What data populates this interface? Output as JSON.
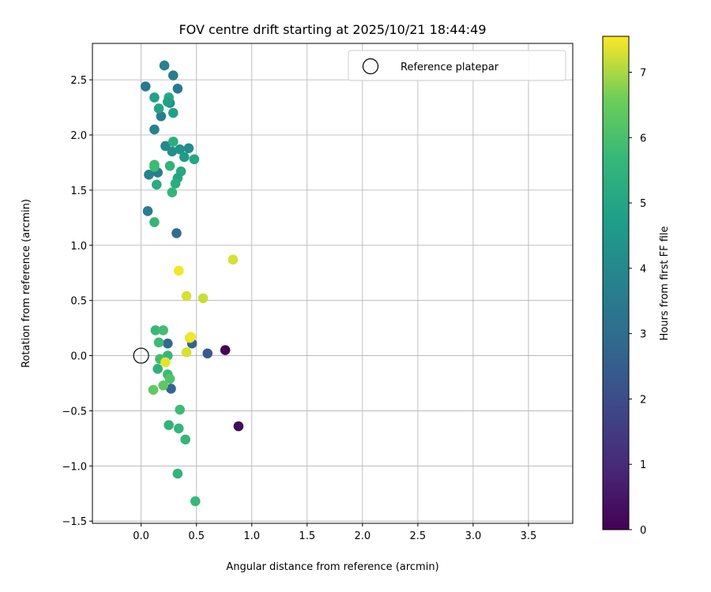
{
  "chart_data": {
    "type": "scatter",
    "title": "FOV centre drift starting at 2025/10/21 18:44:49",
    "xlabel": "Angular distance from reference (arcmin)",
    "ylabel": "Rotation from reference (arcmin)",
    "xlim": [
      -0.44,
      3.9
    ],
    "ylim": [
      -1.52,
      2.83
    ],
    "xticks": [
      0.0,
      0.5,
      1.0,
      1.5,
      2.0,
      2.5,
      3.0,
      3.5
    ],
    "xtick_labels": [
      "0.0",
      "0.5",
      "1.0",
      "1.5",
      "2.0",
      "2.5",
      "3.0",
      "3.5"
    ],
    "yticks": [
      -1.5,
      -1.0,
      -0.5,
      0.0,
      0.5,
      1.0,
      1.5,
      2.0,
      2.5
    ],
    "ytick_labels": [
      "−1.5",
      "−1.0",
      "−0.5",
      "0.0",
      "0.5",
      "1.0",
      "1.5",
      "2.0",
      "2.5"
    ],
    "grid": true,
    "legend": {
      "position": "top-right",
      "entries": [
        "Reference platepar"
      ]
    },
    "reference_point": {
      "name": "Reference platepar",
      "x": 0.0,
      "y": 0.0
    },
    "colorbar": {
      "label": "Hours from first FF file",
      "colormap": "viridis",
      "range": [
        0,
        7.55
      ],
      "ticks": [
        0,
        1,
        2,
        3,
        4,
        5,
        6,
        7
      ],
      "tick_labels": [
        "0",
        "1",
        "2",
        "3",
        "4",
        "5",
        "6",
        "7"
      ]
    },
    "points": [
      {
        "x": 0.76,
        "y": 0.05,
        "h": 0.1
      },
      {
        "x": 0.88,
        "y": -0.64,
        "h": 0.2
      },
      {
        "x": 0.6,
        "y": 0.02,
        "h": 2.4
      },
      {
        "x": 0.46,
        "y": 0.11,
        "h": 2.7
      },
      {
        "x": 0.24,
        "y": 0.11,
        "h": 2.9
      },
      {
        "x": 0.27,
        "y": -0.3,
        "h": 2.8
      },
      {
        "x": 0.32,
        "y": 1.11,
        "h": 3.0
      },
      {
        "x": 0.06,
        "y": 1.31,
        "h": 3.6
      },
      {
        "x": 0.07,
        "y": 1.64,
        "h": 3.8
      },
      {
        "x": 0.15,
        "y": 1.66,
        "h": 3.6
      },
      {
        "x": 0.04,
        "y": 2.44,
        "h": 3.5
      },
      {
        "x": 0.21,
        "y": 2.63,
        "h": 3.7
      },
      {
        "x": 0.29,
        "y": 2.54,
        "h": 3.6
      },
      {
        "x": 0.33,
        "y": 2.42,
        "h": 3.4
      },
      {
        "x": 0.18,
        "y": 2.17,
        "h": 3.6
      },
      {
        "x": 0.12,
        "y": 2.05,
        "h": 3.8
      },
      {
        "x": 0.26,
        "y": 2.29,
        "h": 4.1
      },
      {
        "x": 0.22,
        "y": 1.9,
        "h": 4.0
      },
      {
        "x": 0.43,
        "y": 1.88,
        "h": 4.1
      },
      {
        "x": 0.35,
        "y": 1.87,
        "h": 4.3
      },
      {
        "x": 0.28,
        "y": 1.85,
        "h": 4.2
      },
      {
        "x": 0.39,
        "y": 1.8,
        "h": 4.6
      },
      {
        "x": 0.12,
        "y": 2.34,
        "h": 4.9
      },
      {
        "x": 0.16,
        "y": 2.24,
        "h": 4.9
      },
      {
        "x": 0.25,
        "y": 2.34,
        "h": 5.1
      },
      {
        "x": 0.24,
        "y": 2.3,
        "h": 4.8
      },
      {
        "x": 0.29,
        "y": 2.2,
        "h": 4.8
      },
      {
        "x": 0.29,
        "y": 1.94,
        "h": 5.3
      },
      {
        "x": 0.48,
        "y": 1.78,
        "h": 5.0
      },
      {
        "x": 0.26,
        "y": 1.72,
        "h": 5.5
      },
      {
        "x": 0.12,
        "y": 1.73,
        "h": 5.8
      },
      {
        "x": 0.12,
        "y": 1.71,
        "h": 5.8
      },
      {
        "x": 0.36,
        "y": 1.67,
        "h": 5.1
      },
      {
        "x": 0.33,
        "y": 1.61,
        "h": 5.0
      },
      {
        "x": 0.31,
        "y": 1.56,
        "h": 5.3
      },
      {
        "x": 0.14,
        "y": 1.55,
        "h": 5.2
      },
      {
        "x": 0.28,
        "y": 1.48,
        "h": 5.6
      },
      {
        "x": 0.12,
        "y": 1.21,
        "h": 5.6
      },
      {
        "x": 0.13,
        "y": 0.23,
        "h": 5.7
      },
      {
        "x": 0.2,
        "y": 0.23,
        "h": 5.9
      },
      {
        "x": 0.16,
        "y": 0.12,
        "h": 5.8
      },
      {
        "x": 0.24,
        "y": 0.0,
        "h": 5.6
      },
      {
        "x": 0.17,
        "y": -0.03,
        "h": 5.9
      },
      {
        "x": 0.15,
        "y": -0.12,
        "h": 5.4
      },
      {
        "x": 0.24,
        "y": -0.17,
        "h": 5.8
      },
      {
        "x": 0.26,
        "y": -0.21,
        "h": 6.1
      },
      {
        "x": 0.2,
        "y": -0.27,
        "h": 6.3
      },
      {
        "x": 0.11,
        "y": -0.31,
        "h": 6.4
      },
      {
        "x": 0.35,
        "y": -0.49,
        "h": 5.8
      },
      {
        "x": 0.25,
        "y": -0.63,
        "h": 5.5
      },
      {
        "x": 0.34,
        "y": -0.66,
        "h": 5.6
      },
      {
        "x": 0.4,
        "y": -0.76,
        "h": 5.6
      },
      {
        "x": 0.33,
        "y": -1.07,
        "h": 5.5
      },
      {
        "x": 0.49,
        "y": -1.32,
        "h": 5.7
      },
      {
        "x": 0.22,
        "y": -0.06,
        "h": 7.4
      },
      {
        "x": 0.44,
        "y": 0.16,
        "h": 7.3
      },
      {
        "x": 0.45,
        "y": 0.17,
        "h": 7.5
      },
      {
        "x": 0.41,
        "y": 0.03,
        "h": 7.3
      },
      {
        "x": 0.41,
        "y": 0.54,
        "h": 7.3
      },
      {
        "x": 0.56,
        "y": 0.52,
        "h": 7.2
      },
      {
        "x": 0.34,
        "y": 0.77,
        "h": 7.5
      },
      {
        "x": 0.83,
        "y": 0.87,
        "h": 7.3
      }
    ]
  }
}
